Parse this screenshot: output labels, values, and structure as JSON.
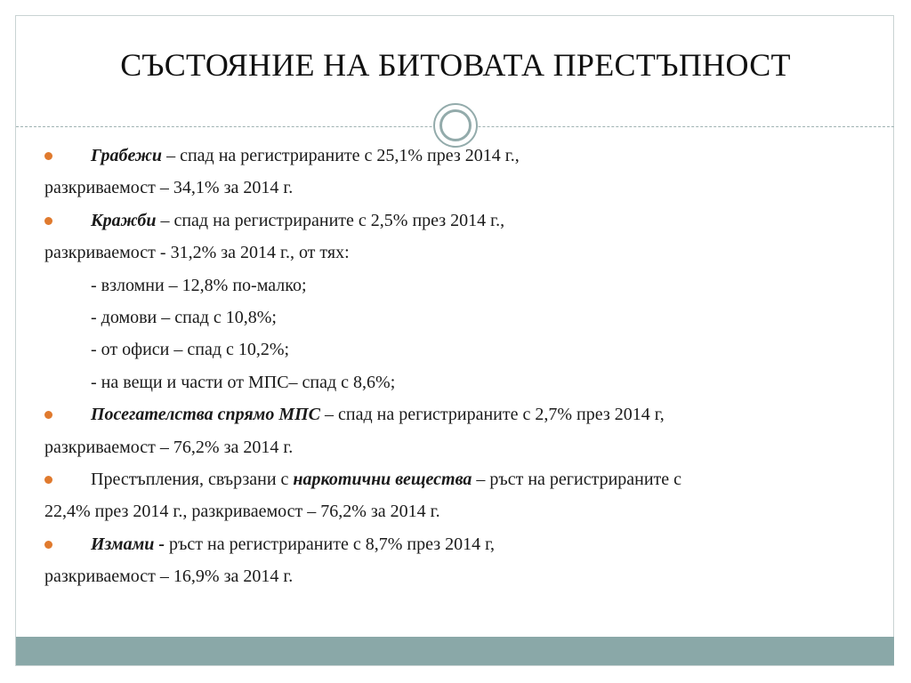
{
  "title": "СЪСТОЯНИЕ НА БИТОВАТА ПРЕСТЪПНОСТ",
  "colors": {
    "bullet": "#e07a2e",
    "accent": "#8aa8a8",
    "ring": "#93abab"
  },
  "items": [
    {
      "term": "Грабежи",
      "line1_rest": " –  спад на регистрираните с 25,1% през 2014 г.,",
      "line2": "разкриваемост – 34,1% за 2014 г."
    },
    {
      "term": "Кражби",
      "line1_rest": " – спад на регистрираните с 2,5% през 2014 г.,",
      "line2": "разкриваемост - 31,2% за 2014 г., от тях:",
      "subs": [
        "- взломни – 12,8% по-малко;",
        "- домови – спад с 10,8%;",
        "- от офиси – спад с 10,2%;",
        "- на вещи и части от МПС– спад с 8,6%;"
      ]
    },
    {
      "term": "Посегателства спрямо МПС",
      "line1_rest": " – спад на регистрираните с 2,7% през 2014 г,",
      "line2": "разкриваемост – 76,2% за 2014 г."
    },
    {
      "prefix": "Престъпления, свързани с ",
      "term": "наркотични вещества",
      "line1_rest": " – ръст на регистрираните с",
      "line2": "22,4% през 2014 г., разкриваемост – 76,2% за 2014 г."
    },
    {
      "term": "Измами  -",
      "line1_rest": " ръст на регистрираните с 8,7% през 2014 г,",
      "line2": "разкриваемост – 16,9% за 2014 г."
    }
  ]
}
